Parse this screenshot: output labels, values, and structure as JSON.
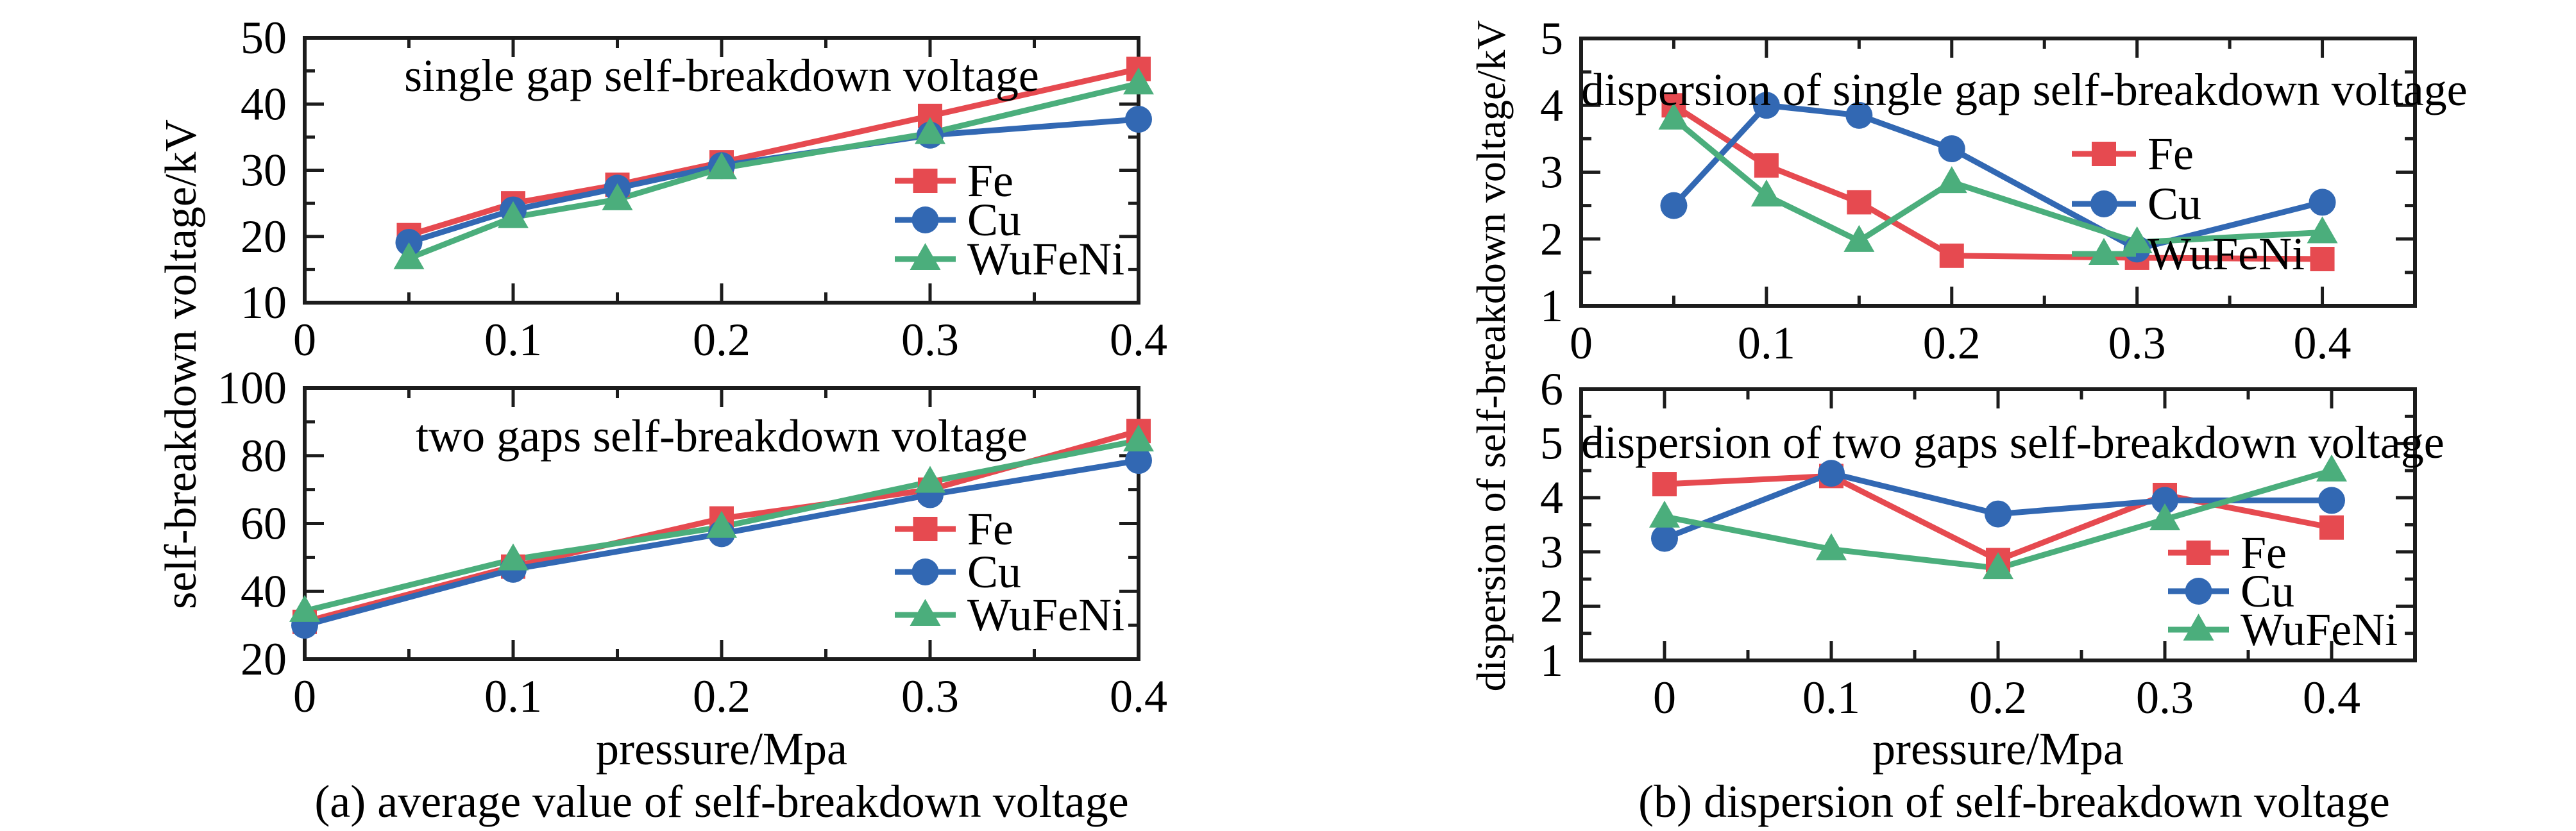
{
  "figure": {
    "left_ylabel": "self-breakdown voltage/kV",
    "right_ylabel": "dispersion of self-breakdown voltage/kV",
    "xlabel_left": "pressure/Mpa",
    "xlabel_right": "pressure/Mpa",
    "caption_a": "(a) average value of self-breakdown voltage",
    "caption_b": "(b) dispersion of self-breakdown voltage",
    "legend_entries": [
      "Fe",
      "Cu",
      "WuFeNi"
    ],
    "colors": {
      "Fe": "#e64a50",
      "Cu": "#3268b3",
      "WuFeNi": "#4bae7c",
      "axis": "#1c1c1c",
      "text": "#000000"
    }
  },
  "chart_data": [
    {
      "id": "single-gap-voltage",
      "type": "line",
      "title": "single gap self-breakdown voltage",
      "xlabel": "",
      "ylabel": "self-breakdown voltage/kV",
      "xlim": [
        0,
        0.4
      ],
      "ylim": [
        10,
        50
      ],
      "xticks": [
        0,
        0.1,
        0.2,
        0.3,
        0.4
      ],
      "xtick_labels": [
        "0",
        "0.1",
        "0.2",
        "0.3",
        "0.4"
      ],
      "yticks": [
        10,
        20,
        30,
        40,
        50
      ],
      "x_minor_step": 0.05,
      "y_minor_step": 5,
      "grid": false,
      "legend_position": "right-middle",
      "x": [
        0.05,
        0.1,
        0.15,
        0.2,
        0.3,
        0.4
      ],
      "series": [
        {
          "name": "Fe",
          "marker": "square",
          "values": [
            20.2,
            25.0,
            27.8,
            31.2,
            38.2,
            45.3
          ]
        },
        {
          "name": "Cu",
          "marker": "circle",
          "values": [
            19.1,
            24.0,
            27.3,
            30.7,
            35.3,
            37.7
          ]
        },
        {
          "name": "WuFeNi",
          "marker": "triangle",
          "values": [
            16.7,
            22.9,
            25.6,
            30.3,
            35.6,
            43.1
          ]
        }
      ]
    },
    {
      "id": "two-gaps-voltage",
      "type": "line",
      "title": "two gaps self-breakdown voltage",
      "xlabel": "pressure/Mpa",
      "ylabel": "self-breakdown voltage/kV",
      "xlim": [
        0,
        0.4
      ],
      "ylim": [
        20,
        100
      ],
      "xticks": [
        0,
        0.1,
        0.2,
        0.3,
        0.4
      ],
      "xtick_labels": [
        "0",
        "0.1",
        "0.2",
        "0.3",
        "0.4"
      ],
      "yticks": [
        20,
        40,
        60,
        80,
        100
      ],
      "x_minor_step": 0.05,
      "y_minor_step": 10,
      "grid": false,
      "legend_position": "right-middle",
      "x": [
        0,
        0.1,
        0.2,
        0.3,
        0.4
      ],
      "series": [
        {
          "name": "Fe",
          "marker": "square",
          "values": [
            31.0,
            47.3,
            61.5,
            70.0,
            87.3
          ]
        },
        {
          "name": "Cu",
          "marker": "circle",
          "values": [
            30.0,
            46.5,
            57.0,
            68.5,
            78.6
          ]
        },
        {
          "name": "WuFeNi",
          "marker": "triangle",
          "values": [
            34.2,
            49.4,
            59.0,
            72.3,
            84.5
          ]
        }
      ]
    },
    {
      "id": "dispersion-single-gap",
      "type": "line",
      "title": "dispersion of single gap self-breakdown voltage",
      "xlabel": "",
      "ylabel": "dispersion of self-breakdown voltage/kV",
      "xlim": [
        0,
        0.45
      ],
      "ylim": [
        1,
        5
      ],
      "xticks": [
        0,
        0.1,
        0.2,
        0.3,
        0.4
      ],
      "xtick_labels": [
        "0",
        "0.1",
        "0.2",
        "0.3",
        "0.4"
      ],
      "yticks": [
        1,
        2,
        3,
        4,
        5
      ],
      "x_minor_step": 0.05,
      "y_minor_step": 0.5,
      "grid": false,
      "legend_position": "right-top",
      "x": [
        0.05,
        0.1,
        0.15,
        0.2,
        0.3,
        0.4
      ],
      "series": [
        {
          "name": "Fe",
          "marker": "square",
          "values": [
            4.0,
            3.1,
            2.55,
            1.75,
            1.72,
            1.7
          ]
        },
        {
          "name": "Cu",
          "marker": "circle",
          "values": [
            2.5,
            4.0,
            3.85,
            3.35,
            1.85,
            2.55
          ]
        },
        {
          "name": "WuFeNi",
          "marker": "triangle",
          "values": [
            3.8,
            2.65,
            1.97,
            2.85,
            1.95,
            2.1
          ]
        }
      ]
    },
    {
      "id": "dispersion-two-gaps",
      "type": "line",
      "title": "dispersion of two gaps self-breakdown voltage",
      "xlabel": "pressure/Mpa",
      "ylabel": "dispersion of self-breakdown voltage/kV",
      "xlim": [
        -0.05,
        0.45
      ],
      "ylim": [
        1,
        6
      ],
      "xticks": [
        0,
        0.1,
        0.2,
        0.3,
        0.4
      ],
      "xtick_labels": [
        "0",
        "0.1",
        "0.2",
        "0.3",
        "0.4"
      ],
      "yticks": [
        1,
        2,
        3,
        4,
        5,
        6
      ],
      "x_minor_step": 0.05,
      "y_minor_step": 0.5,
      "grid": false,
      "legend_position": "right-middle",
      "x": [
        0,
        0.1,
        0.2,
        0.3,
        0.4
      ],
      "series": [
        {
          "name": "Fe",
          "marker": "square",
          "values": [
            4.25,
            4.4,
            2.85,
            4.05,
            3.45
          ]
        },
        {
          "name": "Cu",
          "marker": "circle",
          "values": [
            3.25,
            4.45,
            3.7,
            3.95,
            3.95
          ]
        },
        {
          "name": "WuFeNi",
          "marker": "triangle",
          "values": [
            3.65,
            3.05,
            2.7,
            3.6,
            4.5
          ]
        }
      ]
    }
  ]
}
